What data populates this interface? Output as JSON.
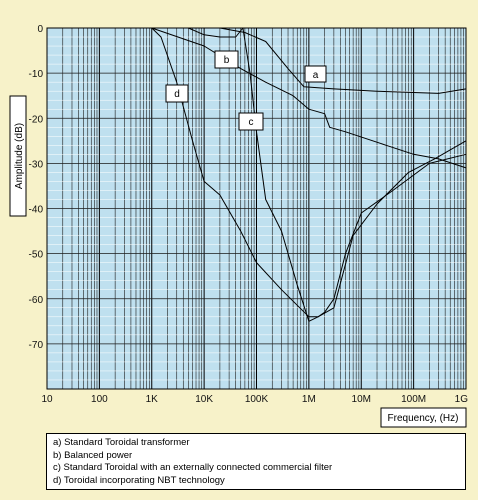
{
  "chart_data": {
    "type": "line",
    "xscale": "log",
    "xlim": [
      10,
      1000000000
    ],
    "ylim": [
      -80,
      0
    ],
    "ylabel": "Amplitude (dB)",
    "xlabel": "Frequency, (Hz)",
    "grid": true,
    "legend_position": "bottom",
    "x_tick_labels": [
      "10",
      "100",
      "1K",
      "10K",
      "100K",
      "1M",
      "10M",
      "100M",
      "1G"
    ],
    "y_tick_labels": [
      "0",
      "-10",
      "-20",
      "-30",
      "-40",
      "-50",
      "-60",
      "-70"
    ],
    "legend": [
      "a) Standard Toroidal transformer",
      "b) Balanced power",
      "c) Standard Toroidal with an externally connected commercial filter",
      "d) Toroidal incorporating NBT technology"
    ],
    "series": [
      {
        "label": "a",
        "points": [
          [
            1000,
            0
          ],
          [
            20000,
            0
          ],
          [
            60000,
            -1
          ],
          [
            150000,
            -3
          ],
          [
            400000,
            -9
          ],
          [
            800000,
            -13
          ],
          [
            3000000,
            -13.5
          ],
          [
            20000000,
            -14
          ],
          [
            300000000,
            -14.5
          ],
          [
            1000000000,
            -13.5
          ]
        ]
      },
      {
        "label": "b",
        "points": [
          [
            5000,
            0
          ],
          [
            10000,
            -1.5
          ],
          [
            20000,
            -2
          ],
          [
            40000,
            -2
          ],
          [
            55000,
            0
          ],
          [
            75000,
            -10
          ],
          [
            100000,
            -23
          ],
          [
            150000,
            -38
          ],
          [
            300000,
            -45
          ],
          [
            600000,
            -57
          ],
          [
            1000000,
            -65
          ],
          [
            1500000,
            -64
          ],
          [
            3000000,
            -62
          ],
          [
            7000000,
            -46
          ],
          [
            20000000,
            -39
          ],
          [
            80000000,
            -32
          ],
          [
            250000000,
            -29
          ],
          [
            1000000000,
            -25
          ]
        ]
      },
      {
        "label": "c",
        "points": [
          [
            1000,
            0
          ],
          [
            10000,
            -4
          ],
          [
            50000,
            -9
          ],
          [
            150000,
            -12
          ],
          [
            500000,
            -15
          ],
          [
            1000000,
            -18
          ],
          [
            2000000,
            -19
          ],
          [
            2500000,
            -22
          ],
          [
            5000000,
            -23
          ],
          [
            30000000,
            -26
          ],
          [
            100000000,
            -28
          ],
          [
            300000000,
            -29
          ],
          [
            1000000000,
            -31
          ]
        ]
      },
      {
        "label": "d",
        "points": [
          [
            1000,
            0
          ],
          [
            1500,
            -2
          ],
          [
            3000,
            -12
          ],
          [
            6000,
            -25
          ],
          [
            10000,
            -34
          ],
          [
            20000,
            -37
          ],
          [
            50000,
            -45
          ],
          [
            100000,
            -52
          ],
          [
            300000,
            -58
          ],
          [
            1000000,
            -64
          ],
          [
            1500000,
            -64
          ],
          [
            2000000,
            -63
          ],
          [
            3000000,
            -60
          ],
          [
            5000000,
            -50
          ],
          [
            10000000,
            -41
          ],
          [
            40000000,
            -36
          ],
          [
            200000000,
            -30
          ],
          [
            1000000000,
            -28
          ]
        ]
      }
    ]
  }
}
